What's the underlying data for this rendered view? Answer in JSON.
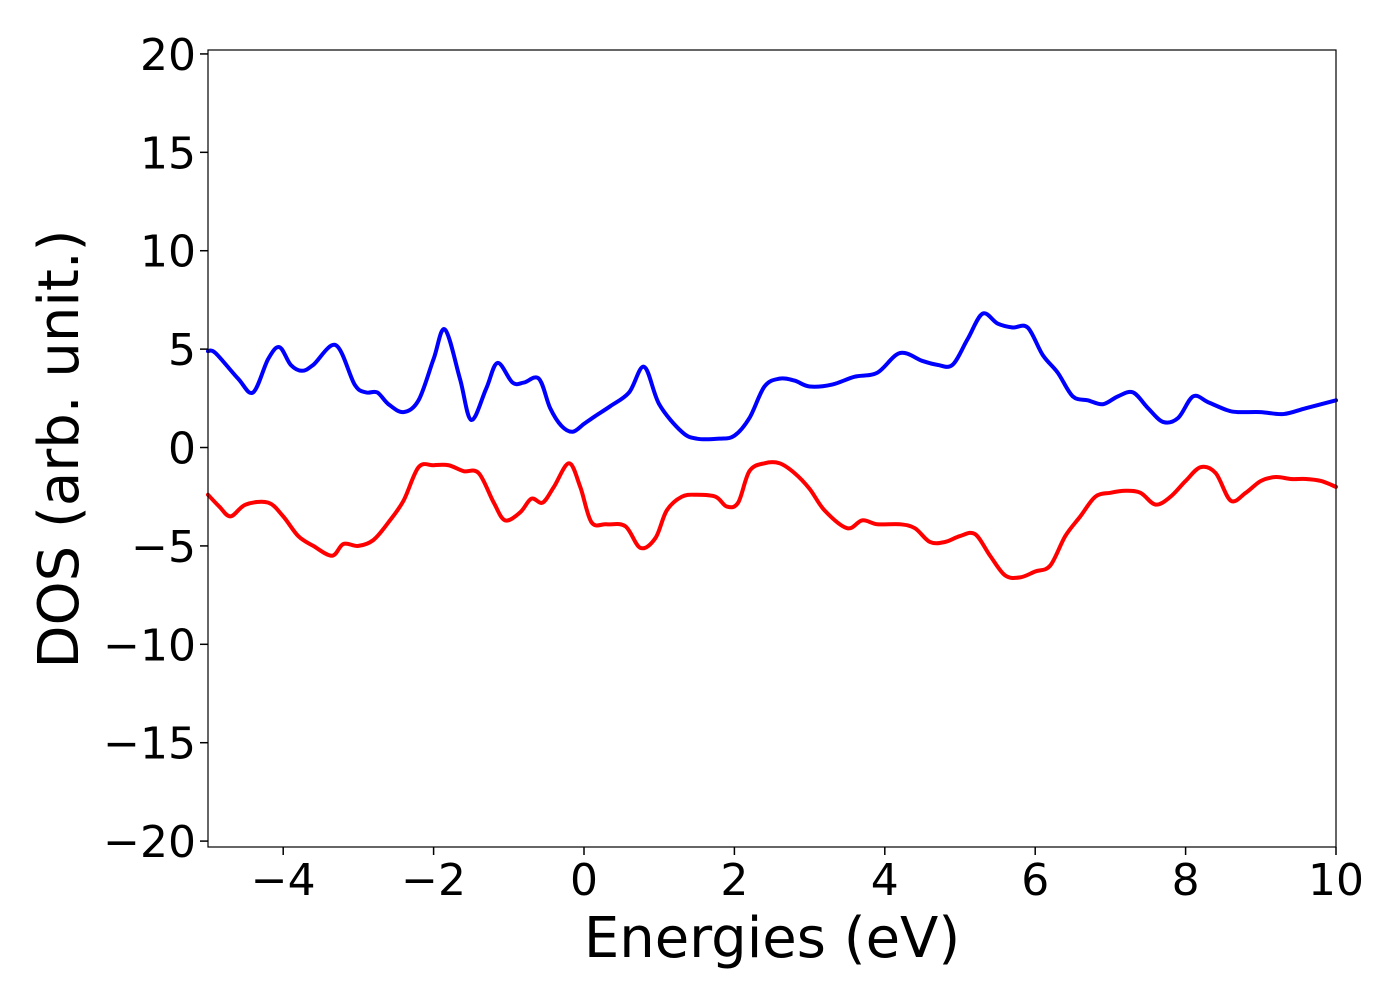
{
  "chart_data": {
    "type": "line",
    "title": "",
    "xlabel": "Energies (eV)",
    "ylabel": "DOS (arb. unit.)",
    "xlim": [
      -5,
      10
    ],
    "ylim": [
      -20.3,
      20.2
    ],
    "xticks": [
      -4,
      -2,
      0,
      2,
      4,
      6,
      8,
      10
    ],
    "xtick_labels": [
      "−4",
      "−2",
      "0",
      "2",
      "4",
      "6",
      "8",
      "10"
    ],
    "yticks": [
      -20,
      -15,
      -10,
      -5,
      0,
      5,
      10,
      15,
      20
    ],
    "ytick_labels": [
      "−20",
      "−15",
      "−10",
      "−5",
      "0",
      "5",
      "10",
      "15",
      "20"
    ],
    "grid": false,
    "legend": "none",
    "series": [
      {
        "color": "#0000ff",
        "x": [
          -5.0,
          -4.9,
          -4.6,
          -4.4,
          -4.2,
          -4.05,
          -3.9,
          -3.75,
          -3.6,
          -3.3,
          -3.05,
          -2.9,
          -2.75,
          -2.6,
          -2.4,
          -2.2,
          -2.0,
          -1.85,
          -1.65,
          -1.5,
          -1.3,
          -1.15,
          -0.95,
          -0.8,
          -0.6,
          -0.45,
          -0.3,
          -0.15,
          0.0,
          0.15,
          0.35,
          0.6,
          0.8,
          1.0,
          1.3,
          1.5,
          1.8,
          2.0,
          2.2,
          2.4,
          2.6,
          2.8,
          3.0,
          3.3,
          3.6,
          3.9,
          4.2,
          4.5,
          4.7,
          4.9,
          5.1,
          5.3,
          5.5,
          5.7,
          5.9,
          6.1,
          6.3,
          6.5,
          6.7,
          6.9,
          7.1,
          7.3,
          7.5,
          7.7,
          7.9,
          8.1,
          8.3,
          8.55,
          8.7,
          9.0,
          9.3,
          9.6,
          10.0
        ],
        "y": [
          4.9,
          4.8,
          3.5,
          2.8,
          4.5,
          5.1,
          4.2,
          3.9,
          4.2,
          5.2,
          3.2,
          2.8,
          2.8,
          2.2,
          1.8,
          2.4,
          4.5,
          6.0,
          3.5,
          1.4,
          3.0,
          4.3,
          3.3,
          3.3,
          3.5,
          2.0,
          1.1,
          0.8,
          1.2,
          1.6,
          2.1,
          2.8,
          4.1,
          2.2,
          0.8,
          0.45,
          0.45,
          0.6,
          1.5,
          3.1,
          3.5,
          3.4,
          3.1,
          3.2,
          3.6,
          3.8,
          4.8,
          4.4,
          4.2,
          4.2,
          5.5,
          6.8,
          6.3,
          6.1,
          6.1,
          4.7,
          3.8,
          2.6,
          2.4,
          2.2,
          2.6,
          2.8,
          2.0,
          1.3,
          1.5,
          2.6,
          2.3,
          1.9,
          1.8,
          1.8,
          1.7,
          2.0,
          2.4
        ]
      },
      {
        "color": "#ff0000",
        "x": [
          -5.0,
          -4.85,
          -4.7,
          -4.5,
          -4.2,
          -4.0,
          -3.8,
          -3.6,
          -3.35,
          -3.2,
          -3.0,
          -2.8,
          -2.6,
          -2.4,
          -2.2,
          -2.0,
          -1.8,
          -1.6,
          -1.4,
          -1.2,
          -1.05,
          -0.85,
          -0.7,
          -0.55,
          -0.4,
          -0.2,
          -0.05,
          0.1,
          0.3,
          0.55,
          0.75,
          0.95,
          1.1,
          1.3,
          1.5,
          1.75,
          1.9,
          2.05,
          2.2,
          2.4,
          2.6,
          2.8,
          3.0,
          3.2,
          3.5,
          3.7,
          3.9,
          4.2,
          4.4,
          4.6,
          4.8,
          5.0,
          5.2,
          5.4,
          5.6,
          5.8,
          6.0,
          6.2,
          6.4,
          6.6,
          6.8,
          7.0,
          7.2,
          7.4,
          7.6,
          7.8,
          8.0,
          8.2,
          8.4,
          8.6,
          8.8,
          9.0,
          9.2,
          9.4,
          9.6,
          9.8,
          10.0
        ],
        "y": [
          -2.4,
          -3.0,
          -3.5,
          -2.9,
          -2.8,
          -3.5,
          -4.5,
          -5.0,
          -5.5,
          -4.9,
          -5.0,
          -4.7,
          -3.8,
          -2.7,
          -1.0,
          -0.9,
          -0.9,
          -1.2,
          -1.3,
          -2.8,
          -3.7,
          -3.3,
          -2.6,
          -2.8,
          -2.0,
          -0.8,
          -2.0,
          -3.8,
          -3.9,
          -4.0,
          -5.1,
          -4.6,
          -3.2,
          -2.5,
          -2.4,
          -2.5,
          -3.0,
          -2.8,
          -1.2,
          -0.8,
          -0.8,
          -1.3,
          -2.1,
          -3.2,
          -4.1,
          -3.7,
          -3.9,
          -3.9,
          -4.1,
          -4.8,
          -4.8,
          -4.5,
          -4.4,
          -5.5,
          -6.5,
          -6.6,
          -6.3,
          -6.0,
          -4.5,
          -3.5,
          -2.5,
          -2.3,
          -2.2,
          -2.3,
          -2.9,
          -2.5,
          -1.7,
          -1.0,
          -1.3,
          -2.7,
          -2.3,
          -1.7,
          -1.5,
          -1.6,
          -1.6,
          -1.7,
          -2.0
        ]
      }
    ]
  }
}
